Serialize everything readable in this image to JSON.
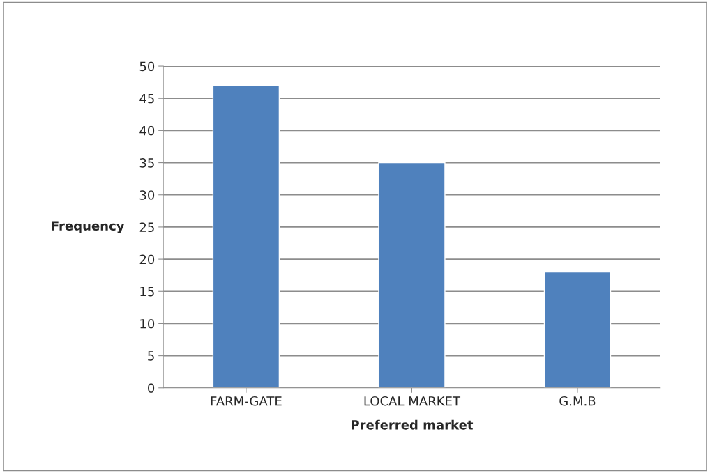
{
  "chart_data": {
    "type": "bar",
    "categories": [
      "FARM-GATE",
      "LOCAL MARKET",
      "G.M.B"
    ],
    "values": [
      47,
      35,
      18
    ],
    "color": "#4f81bd",
    "xlabel": "Preferred market",
    "ylabel": "Frequency",
    "ylim": [
      0,
      50
    ],
    "yticks": [
      0,
      5,
      10,
      15,
      20,
      25,
      30,
      35,
      40,
      45,
      50
    ],
    "grid": "y"
  }
}
